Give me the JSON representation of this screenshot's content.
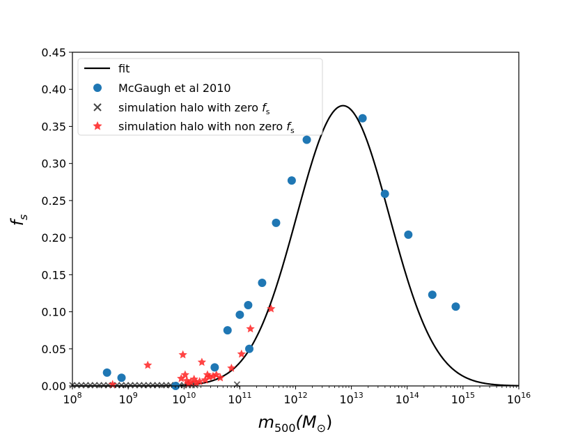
{
  "chart_data": {
    "type": "scatter",
    "xscale": "log",
    "xlim_exp": [
      8,
      16
    ],
    "ylim": [
      0,
      0.45
    ],
    "x_ticks": [
      {
        "base": "10",
        "exp": "8"
      },
      {
        "base": "10",
        "exp": "9"
      },
      {
        "base": "10",
        "exp": "10"
      },
      {
        "base": "10",
        "exp": "11"
      },
      {
        "base": "10",
        "exp": "12"
      },
      {
        "base": "10",
        "exp": "13"
      },
      {
        "base": "10",
        "exp": "14"
      },
      {
        "base": "10",
        "exp": "15"
      },
      {
        "base": "10",
        "exp": "16"
      }
    ],
    "y_ticks": [
      "0.00",
      "0.05",
      "0.10",
      "0.15",
      "0.20",
      "0.25",
      "0.30",
      "0.35",
      "0.40",
      "0.45"
    ],
    "xlabel": {
      "main": "m",
      "sub": "500",
      "tail": "(M",
      "sub2": "⊙",
      "close": ")"
    },
    "ylabel": {
      "main": "f",
      "sub": "s"
    },
    "legend_position": "upper-left",
    "legend": {
      "fit": "fit",
      "mcgaugh": "McGaugh et al 2010",
      "zero_prefix": "simulation halo with zero ",
      "nonzero_prefix": "simulation halo with non zero ",
      "fs_main": "f",
      "fs_sub": "s"
    },
    "colors": {
      "fit": "#000000",
      "mcgaugh": "#1f77b4",
      "zero": "#444444",
      "nonzero": "#ff2a2a"
    },
    "fit": {
      "peak_log_m": 12.85,
      "peak_fs": 0.378,
      "sigma_log_m": 0.83
    },
    "series": [
      {
        "name": "McGaugh et al 2010",
        "marker": "circle",
        "log_x": [
          8.62,
          8.88,
          9.85,
          10.55,
          10.78,
          11.0,
          11.17,
          11.15,
          11.4,
          11.65,
          11.93,
          12.2,
          13.2,
          13.6,
          14.02,
          14.45,
          14.87
        ],
        "y": [
          0.018,
          0.011,
          0.0,
          0.025,
          0.075,
          0.096,
          0.05,
          0.109,
          0.139,
          0.22,
          0.277,
          0.332,
          0.361,
          0.259,
          0.204,
          0.123,
          0.107
        ]
      },
      {
        "name": "simulation halo with zero fs",
        "marker": "x",
        "log_x": [
          8.0,
          8.08,
          8.16,
          8.24,
          8.32,
          8.4,
          8.48,
          8.56,
          8.64,
          8.72,
          8.8,
          8.88,
          8.96,
          9.04,
          9.12,
          9.2,
          9.28,
          9.36,
          9.44,
          9.52,
          9.6,
          9.68,
          9.76,
          9.84,
          9.92,
          10.0,
          10.07,
          10.14,
          10.2,
          10.95
        ],
        "y": [
          0.001,
          0.001,
          0.001,
          0.001,
          0.001,
          0.001,
          0.001,
          0.001,
          0.001,
          0.001,
          0.001,
          0.001,
          0.001,
          0.001,
          0.001,
          0.001,
          0.001,
          0.001,
          0.001,
          0.001,
          0.001,
          0.001,
          0.001,
          0.001,
          0.001,
          0.001,
          0.001,
          0.001,
          0.001,
          0.002
        ]
      },
      {
        "name": "simulation halo with non zero fs",
        "marker": "star",
        "log_x": [
          8.72,
          9.35,
          9.95,
          9.98,
          10.02,
          10.05,
          10.08,
          10.12,
          10.18,
          10.22,
          10.28,
          10.32,
          10.38,
          10.42,
          10.45,
          10.52,
          10.58,
          10.65,
          10.85,
          11.03,
          11.19,
          11.56
        ],
        "y": [
          0.002,
          0.028,
          0.01,
          0.042,
          0.015,
          0.007,
          0.003,
          0.005,
          0.009,
          0.004,
          0.006,
          0.032,
          0.008,
          0.015,
          0.012,
          0.013,
          0.015,
          0.011,
          0.024,
          0.043,
          0.077,
          0.104
        ]
      }
    ]
  }
}
